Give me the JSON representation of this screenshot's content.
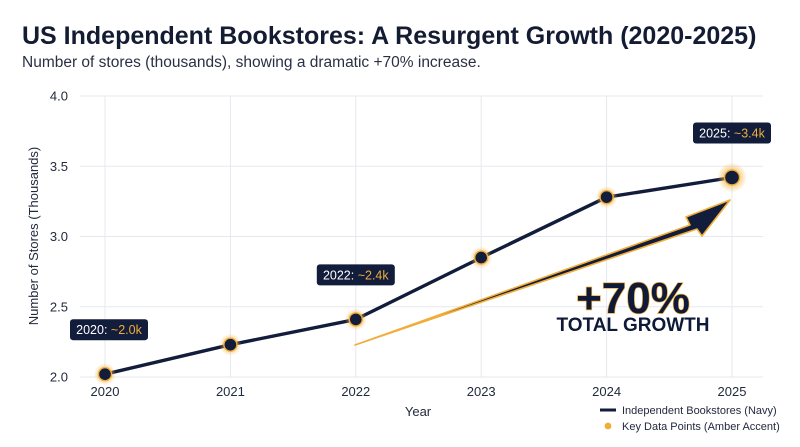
{
  "title": "US Independent Bookstores: A Resurgent Growth (2020-2025)",
  "subtitle": "Number of stores (thousands), showing a dramatic +70% increase.",
  "colors": {
    "navy": "#121c3b",
    "amber": "#f0ad3a",
    "grid": "#e6e8ee"
  },
  "chart_data": {
    "type": "line",
    "x": [
      2020,
      2021,
      2022,
      2023,
      2024,
      2025
    ],
    "series": [
      {
        "name": "Independent Bookstores (Navy)",
        "values": [
          2.02,
          2.23,
          2.41,
          2.85,
          3.28,
          3.42
        ]
      }
    ],
    "xlabel": "Year",
    "ylabel": "Number of Stores (Thousands)",
    "ylim": [
      2.0,
      4.0
    ],
    "yticks": [
      "2.0",
      "2.5",
      "3.0",
      "3.5",
      "4.0"
    ],
    "xticks": [
      "2020",
      "2021",
      "2022",
      "2023",
      "2024",
      "2025"
    ],
    "grid": true,
    "legend_position": "bottom-right",
    "legend": [
      {
        "label": "Independent Bookstores (Navy)",
        "kind": "line"
      },
      {
        "label": "Key Data Points (Amber Accent)",
        "kind": "dot"
      }
    ],
    "callouts": [
      {
        "x": 2020,
        "year": "2020:",
        "value": "~2.0k"
      },
      {
        "x": 2022,
        "year": "2022:",
        "value": "~2.4k"
      },
      {
        "x": 2025,
        "year": "2025:",
        "value": "~3.4k"
      }
    ],
    "annotation": {
      "big": "+70%",
      "sub": "TOTAL GROWTH"
    }
  }
}
